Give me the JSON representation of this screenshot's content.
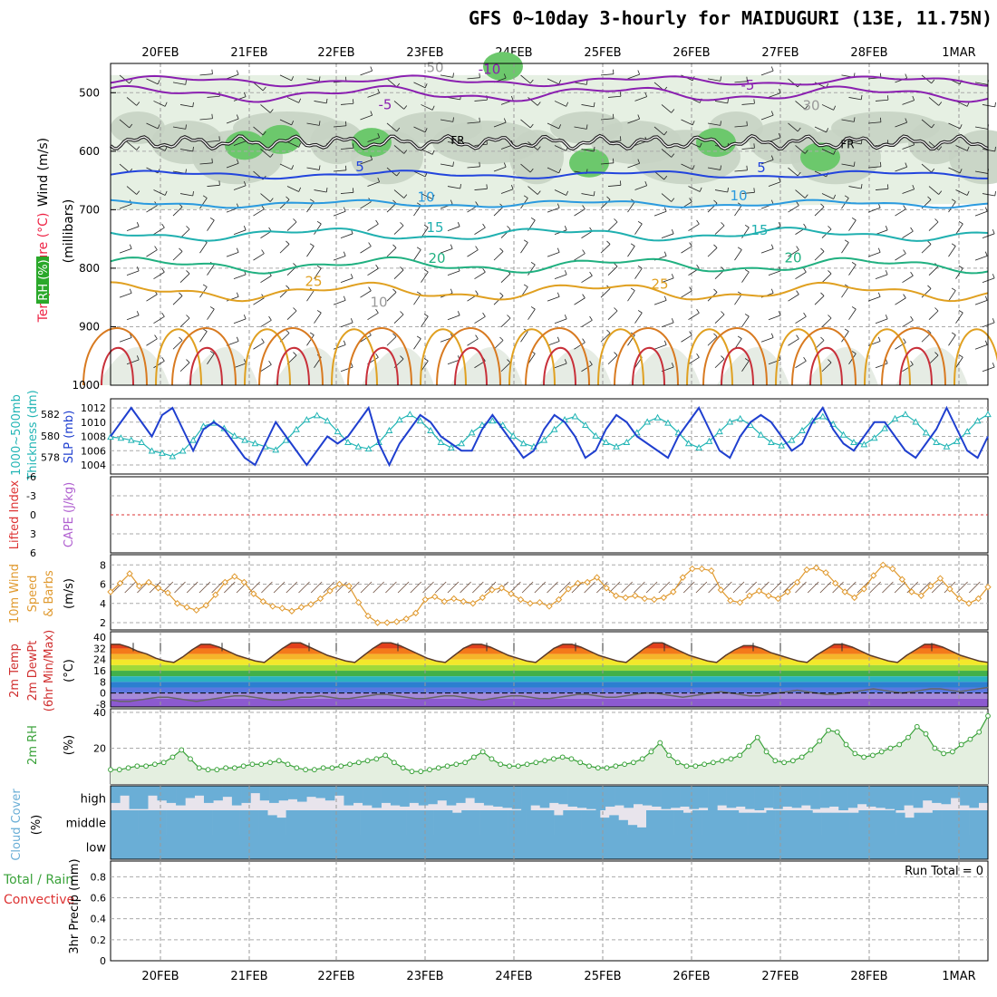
{
  "title": "GFS 0~10day 3-hourly for MAIDUGURI (13E, 11.75N)",
  "chart_data": {
    "type": "meteogram",
    "days": [
      "20FEB",
      "21FEB",
      "22FEB",
      "23FEB",
      "24FEB",
      "25FEB",
      "26FEB",
      "27FEB",
      "28FEB",
      "1MAR"
    ],
    "colors": {
      "temp_5": "#8a1fb0",
      "temp_0": "#2244dd",
      "temp_10": "#2a9adf",
      "temp_15": "#20b0b0",
      "temp_20": "#20b080",
      "temp_25": "#e0a020",
      "temp_30": "#d87a20",
      "temp_35": "#c8303a",
      "rh_light": "#e6f0e3",
      "rh_mid": "#c6d3c3",
      "rh_high": "#6cc86c",
      "slp": "#1f3fcf",
      "thickness": "#22b5b5",
      "wind10m": "#e09a30",
      "rh2m": "#3aa23a",
      "cloud": "#6aaed6",
      "cloud_gap": "#e8e4ec",
      "lifted": "#dd3333"
    },
    "panel1": {
      "ylabels": [
        "W",
        "i",
        "n",
        "d",
        " ",
        "(m/s)"
      ],
      "label_wind": "Wind (m/s)",
      "label_temp": "Temperature (°C)",
      "label_rh": "RH (%)",
      "label_mb": "(millibars)",
      "yticks": [
        500,
        600,
        700,
        800,
        900,
        1000
      ],
      "ylim": [
        450,
        1000
      ],
      "freezing_label": "FR",
      "contour_labels": [
        "-10",
        "-5",
        "-5",
        "5",
        "5",
        "10",
        "10",
        "15",
        "15",
        "20",
        "20",
        "25",
        "25",
        "50",
        "30",
        "10"
      ]
    },
    "panel2": {
      "label_thick": "Thickness (dm)",
      "label_thick2": "1000~500mb",
      "label_slp": "SLP (mb)",
      "thick_ticks": [
        "582",
        "580",
        "578"
      ],
      "slp_ticks": [
        "1012",
        "1010",
        "1008",
        "1006",
        "1004"
      ],
      "slp": [
        1008,
        1010,
        1012,
        1010,
        1008,
        1011,
        1012,
        1009,
        1006,
        1009,
        1010,
        1009,
        1007,
        1005,
        1004,
        1007,
        1010,
        1008,
        1006,
        1004,
        1006,
        1008,
        1007,
        1008,
        1010,
        1012,
        1007,
        1004,
        1007,
        1009,
        1011,
        1010,
        1008,
        1007,
        1006,
        1006,
        1009,
        1011,
        1009,
        1007,
        1005,
        1006,
        1009,
        1011,
        1010,
        1008,
        1005,
        1006,
        1009,
        1011,
        1010,
        1008,
        1007,
        1006,
        1005,
        1008,
        1010,
        1012,
        1009,
        1006,
        1005,
        1008,
        1010,
        1011,
        1010,
        1008,
        1006,
        1007,
        1010,
        1012,
        1009,
        1007,
        1006,
        1008,
        1010,
        1010,
        1008,
        1006,
        1005,
        1007,
        1009,
        1012,
        1009,
        1006,
        1005,
        1008
      ],
      "thickness": [
        579.9,
        579.8,
        579.6,
        579.4,
        578.6,
        578.4,
        578.1,
        578.6,
        579.6,
        580.9,
        581.2,
        580.7,
        580.0,
        579.6,
        579.3,
        579.0,
        578.7,
        579.6,
        580.6,
        581.5,
        581.9,
        581.4,
        580.4,
        579.4,
        579.0,
        578.8,
        579.4,
        580.5,
        581.5,
        582.0,
        581.4,
        580.5,
        579.4,
        578.9,
        579.3,
        580.3,
        581.0,
        581.4,
        581.0,
        580.0,
        579.3,
        579.0,
        579.6,
        580.6,
        581.5,
        581.8,
        581.0,
        580.0,
        579.4,
        579.0,
        579.4,
        580.3,
        581.3,
        581.7,
        581.2,
        580.3,
        579.3,
        578.9,
        579.5,
        580.4,
        581.3,
        581.6,
        581.0,
        580.1,
        579.4,
        579.1,
        579.6,
        580.5,
        581.4,
        581.8,
        581.1,
        580.1,
        579.4,
        579.2,
        579.8,
        580.7,
        581.6,
        582.0,
        581.3,
        580.3,
        579.4,
        579.0,
        579.5,
        580.4,
        581.4,
        582.0
      ]
    },
    "panel3": {
      "label_li": "Lifted Index",
      "label_cape": "CAPE (J/kg)",
      "ticks": [
        "-6",
        "-3",
        "0",
        "3",
        "6"
      ]
    },
    "panel4": {
      "label": "10m Wind Speed & Barbs",
      "label_a": "10m Wind",
      "label_b": "Speed",
      "label_c": "& Barbs",
      "unit": "(m/s)",
      "ticks": [
        "2",
        "4",
        "6",
        "8"
      ],
      "speed": [
        5.2,
        6.1,
        7.1,
        5.8,
        6.2,
        5.6,
        5.1,
        4.0,
        3.6,
        3.3,
        3.8,
        4.9,
        6.2,
        6.8,
        6.2,
        5.0,
        4.2,
        3.7,
        3.5,
        3.2,
        3.6,
        3.9,
        4.5,
        5.3,
        6.0,
        5.8,
        4.1,
        2.7,
        2.0,
        2.0,
        2.1,
        2.4,
        3.0,
        4.4,
        4.7,
        4.2,
        4.5,
        4.2,
        4.0,
        4.6,
        5.4,
        5.6,
        5.0,
        4.4,
        4.0,
        4.1,
        3.7,
        4.4,
        5.5,
        6.1,
        6.2,
        6.7,
        5.6,
        4.8,
        4.6,
        4.8,
        4.5,
        4.4,
        4.6,
        5.2,
        6.7,
        7.6,
        7.6,
        7.4,
        5.4,
        4.3,
        4.1,
        4.8,
        5.3,
        4.8,
        4.5,
        5.2,
        6.2,
        7.5,
        7.7,
        7.2,
        6.1,
        5.2,
        4.6,
        5.5,
        6.9,
        8.0,
        7.6,
        6.5,
        5.2,
        4.8,
        5.8,
        6.6,
        5.5,
        4.5,
        4.0,
        4.5,
        5.7
      ]
    },
    "panel5": {
      "label_a": "2m Temp",
      "label_b": "2m DewPt",
      "label_c": "(6hr Min/Max)",
      "unit": "(°C)",
      "ticks": [
        "40",
        "32",
        "24",
        "16",
        "8",
        "0",
        "-8"
      ],
      "temp": [
        35,
        35,
        33,
        30,
        28,
        25,
        23,
        22,
        26,
        31,
        35,
        35,
        33,
        30,
        27,
        25,
        23,
        22,
        27,
        32,
        36,
        36,
        33,
        30,
        27,
        25,
        23,
        22,
        27,
        32,
        36,
        36,
        34,
        31,
        28,
        25,
        23,
        22,
        27,
        32,
        35,
        35,
        33,
        30,
        27,
        25,
        23,
        22,
        27,
        32,
        35,
        35,
        33,
        30,
        27,
        25,
        23,
        22,
        27,
        32,
        36,
        36,
        33,
        30,
        27,
        25,
        23,
        22,
        27,
        31,
        34,
        34,
        32,
        29,
        27,
        25,
        23,
        22,
        27,
        31,
        35,
        35,
        33,
        30,
        27,
        25,
        23,
        22,
        27,
        31,
        35,
        35,
        33,
        30,
        27,
        25,
        23,
        22
      ],
      "dewpt": [
        -5,
        -6,
        -6,
        -5,
        -4,
        -3,
        -3,
        -4,
        -5,
        -6,
        -5,
        -4,
        -3,
        -2,
        -2,
        -3,
        -4,
        -5,
        -5,
        -4,
        -3,
        -3,
        -2,
        -3,
        -4,
        -4,
        -3,
        -2,
        -1,
        -1,
        -2,
        -3,
        -4,
        -4,
        -3,
        -2,
        -2,
        -3,
        -4,
        -5,
        -4,
        -3,
        -2,
        -2,
        -3,
        -4,
        -4,
        -3,
        -2,
        -1,
        -1,
        -2,
        -3,
        -3,
        -2,
        -1,
        0,
        0,
        -1,
        -2,
        -3,
        -2,
        -1,
        0,
        1,
        0,
        -1,
        -2,
        -2,
        -1,
        0,
        1,
        2,
        1,
        0,
        -1,
        -1,
        0,
        1,
        2,
        3,
        2,
        1,
        0,
        1,
        2,
        3,
        3,
        2,
        1,
        2,
        3,
        4
      ]
    },
    "panel6": {
      "label": "2m RH",
      "unit": "(%)",
      "ticks": [
        "40",
        "20"
      ],
      "rh": [
        8,
        8,
        9,
        10,
        10,
        11,
        12,
        15,
        19,
        14,
        9,
        8,
        8,
        9,
        9,
        10,
        11,
        11,
        12,
        13,
        11,
        9,
        8,
        8,
        9,
        9,
        10,
        11,
        12,
        13,
        14,
        16,
        12,
        9,
        7,
        7,
        8,
        9,
        10,
        11,
        12,
        15,
        18,
        14,
        11,
        10,
        10,
        11,
        12,
        13,
        14,
        15,
        14,
        12,
        10,
        9,
        9,
        10,
        11,
        12,
        14,
        18,
        23,
        16,
        12,
        10,
        10,
        11,
        12,
        13,
        14,
        16,
        21,
        26,
        18,
        13,
        12,
        13,
        15,
        19,
        24,
        30,
        29,
        22,
        17,
        15,
        16,
        18,
        20,
        22,
        26,
        32,
        28,
        20,
        17,
        18,
        22,
        25,
        29,
        38
      ]
    },
    "panel7": {
      "label": "Cloud Cover",
      "unit": "(%)",
      "levels": [
        "high",
        "middle",
        "low"
      ],
      "high": [
        70,
        40,
        95,
        95,
        40,
        60,
        70,
        80,
        50,
        40,
        70,
        60,
        45,
        80,
        70,
        30,
        60,
        70,
        60,
        55,
        65,
        45,
        50,
        60,
        40,
        80,
        70,
        80,
        90,
        70,
        80,
        85,
        70,
        80,
        75,
        60,
        80,
        70,
        50,
        70,
        80,
        85,
        90,
        95,
        100,
        80,
        90,
        70,
        75,
        85,
        90,
        95,
        100,
        85,
        80,
        90,
        75,
        80,
        85,
        95,
        90,
        85,
        95,
        90,
        100,
        80,
        90,
        85,
        95,
        100,
        90,
        95,
        85,
        90,
        80,
        95,
        90,
        85,
        100,
        90,
        75,
        85,
        90,
        95,
        100,
        80,
        90,
        60,
        70,
        75,
        50,
        80,
        90,
        70
      ],
      "middle": [
        100,
        100,
        100,
        100,
        100,
        100,
        100,
        100,
        100,
        100,
        100,
        100,
        100,
        100,
        100,
        100,
        100,
        80,
        70,
        100,
        100,
        100,
        100,
        100,
        100,
        100,
        100,
        100,
        100,
        100,
        100,
        100,
        100,
        100,
        100,
        100,
        100,
        90,
        100,
        100,
        100,
        100,
        100,
        100,
        100,
        100,
        100,
        100,
        80,
        100,
        100,
        100,
        100,
        70,
        80,
        60,
        40,
        30,
        100,
        100,
        100,
        100,
        90,
        100,
        100,
        100,
        100,
        100,
        90,
        90,
        90,
        100,
        100,
        100,
        100,
        100,
        90,
        90,
        90,
        90,
        90,
        100,
        100,
        100,
        100,
        90,
        70,
        90,
        90,
        100,
        100,
        100,
        100,
        100,
        100
      ]
    },
    "panel8": {
      "label_a": "Total / Rain",
      "label_b": "Convective",
      "label_c": "3hr Precip (mm)",
      "ticks": [
        "0.8",
        "0.6",
        "0.4",
        "0.2",
        "0"
      ],
      "run_total": "Run Total = 0",
      "precip": []
    }
  }
}
